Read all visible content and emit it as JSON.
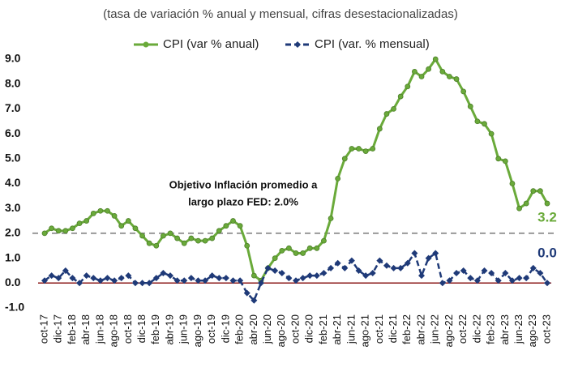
{
  "chart_data": {
    "type": "line",
    "subtitle": "(tasa de variación % anual y mensual, cifras desestacionalizadas)",
    "categories": [
      "oct-17",
      null,
      "dic-17",
      null,
      "feb-18",
      null,
      "abr-18",
      null,
      "jun-18",
      null,
      "ago-18",
      null,
      "oct-18",
      null,
      "dic-18",
      null,
      "feb-19",
      null,
      "abr-19",
      null,
      "jun-19",
      null,
      "ago-19",
      null,
      "oct-19",
      null,
      "dic-19",
      null,
      "feb-20",
      null,
      "abr-20",
      null,
      "jun-20",
      null,
      "ago-20",
      null,
      "oct-20",
      null,
      "dic-20",
      null,
      "feb-21",
      null,
      "abr-21",
      null,
      "jun-21",
      null,
      "ago-21",
      null,
      "oct-21",
      null,
      "dic-21",
      null,
      "feb-22",
      null,
      "abr-22",
      null,
      "jun-22",
      null,
      "ago-22",
      null,
      "oct-22",
      null,
      "dic-22",
      null,
      "feb-23",
      null,
      "abr-23",
      null,
      "jun-23",
      null,
      "ago-23",
      null,
      "oct-23"
    ],
    "series": [
      {
        "name": "CPI (var % anual)",
        "color": "#6aaa3a",
        "marker": "circle",
        "last_label": "3.2",
        "values": [
          2.0,
          2.2,
          2.1,
          2.1,
          2.2,
          2.4,
          2.5,
          2.8,
          2.9,
          2.9,
          2.7,
          2.3,
          2.5,
          2.2,
          1.9,
          1.6,
          1.5,
          1.9,
          2.0,
          1.8,
          1.6,
          1.8,
          1.7,
          1.7,
          1.8,
          2.1,
          2.3,
          2.5,
          2.3,
          1.5,
          0.3,
          0.1,
          0.6,
          1.0,
          1.3,
          1.4,
          1.2,
          1.2,
          1.4,
          1.4,
          1.7,
          2.6,
          4.2,
          5.0,
          5.4,
          5.4,
          5.3,
          5.4,
          6.2,
          6.8,
          7.0,
          7.5,
          7.9,
          8.5,
          8.3,
          8.6,
          9.0,
          8.5,
          8.3,
          8.2,
          7.7,
          7.1,
          6.5,
          6.4,
          6.0,
          5.0,
          4.9,
          4.0,
          3.0,
          3.2,
          3.7,
          3.7,
          3.2
        ]
      },
      {
        "name": "CPI (var. % mensual)",
        "color": "#1f3a78",
        "marker": "diamond",
        "dashed": true,
        "last_label": "0.0",
        "values": [
          0.1,
          0.3,
          0.2,
          0.5,
          0.2,
          0.0,
          0.3,
          0.2,
          0.1,
          0.2,
          0.1,
          0.2,
          0.3,
          0.0,
          0.0,
          0.0,
          0.2,
          0.4,
          0.3,
          0.1,
          0.1,
          0.2,
          0.1,
          0.1,
          0.3,
          0.2,
          0.2,
          0.1,
          0.1,
          -0.4,
          -0.7,
          0.0,
          0.6,
          0.5,
          0.4,
          0.2,
          0.1,
          0.2,
          0.3,
          0.3,
          0.4,
          0.6,
          0.8,
          0.6,
          0.9,
          0.5,
          0.3,
          0.4,
          0.9,
          0.7,
          0.6,
          0.6,
          0.8,
          1.2,
          0.3,
          1.0,
          1.2,
          0.0,
          0.1,
          0.4,
          0.5,
          0.2,
          0.1,
          0.5,
          0.4,
          0.1,
          0.4,
          0.1,
          0.2,
          0.2,
          0.6,
          0.4,
          0.0
        ]
      }
    ],
    "target": {
      "value": 2.0,
      "label": [
        "Objetivo Inflación promedio a",
        "largo plazo FED: 2.0%"
      ]
    },
    "zero_line_color": "#8b1a1a",
    "ylim": [
      -1,
      9
    ],
    "yticks": [
      {
        "value": -1,
        "label": "-1.0"
      },
      {
        "value": 0,
        "label": "0.0"
      },
      {
        "value": 1,
        "label": "1.0"
      },
      {
        "value": 2,
        "label": "2.0"
      },
      {
        "value": 3,
        "label": "3.0"
      },
      {
        "value": 4,
        "label": "4.0"
      },
      {
        "value": 5,
        "label": "5.0"
      },
      {
        "value": 6,
        "label": "6.0"
      },
      {
        "value": 7,
        "label": "7.0"
      },
      {
        "value": 8,
        "label": "8.0"
      },
      {
        "value": 9,
        "label": "9.0"
      }
    ],
    "legend": "top"
  }
}
